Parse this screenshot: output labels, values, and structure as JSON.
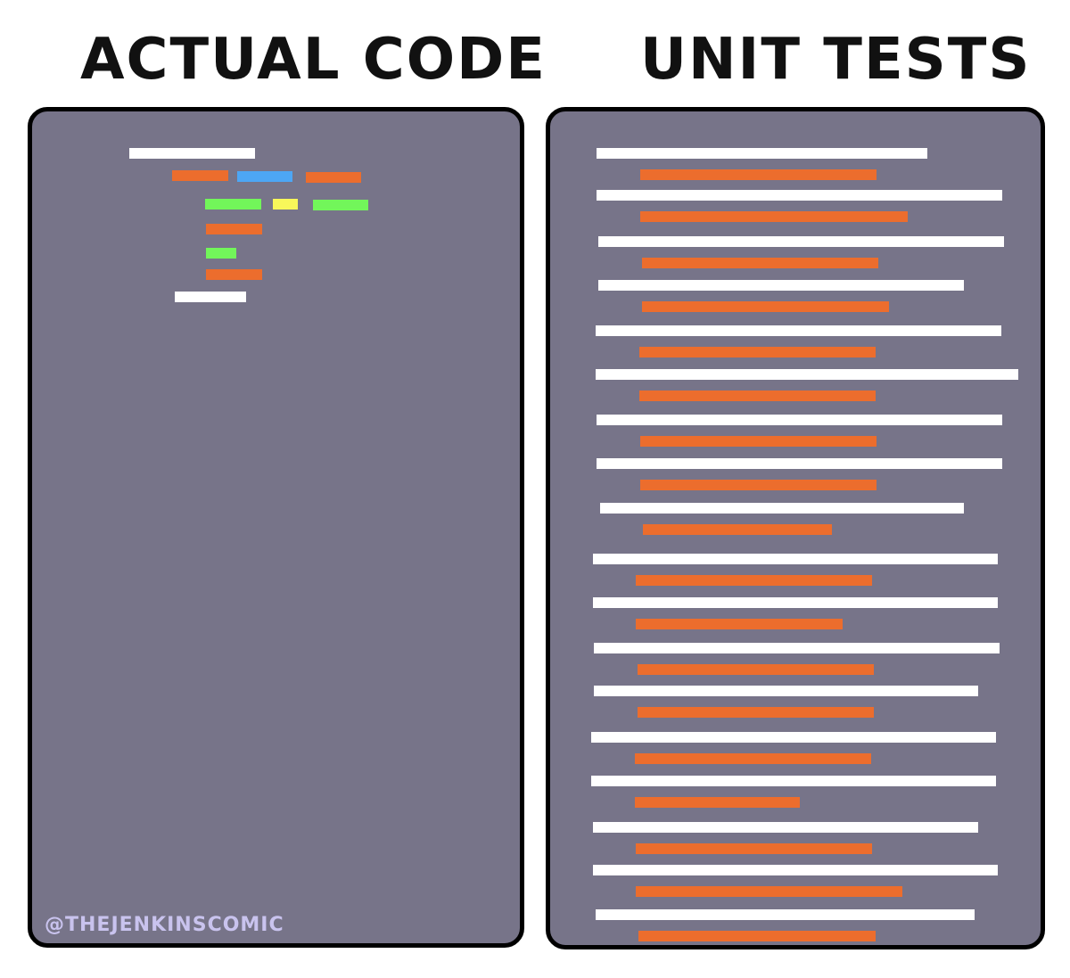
{
  "left": {
    "title": "ACTUAL CODE",
    "watermark": "@THEJENKINSCOMIC"
  },
  "right": {
    "title": "UNIT TESTS"
  },
  "colors": {
    "panel": "#777489",
    "white": "#ffffff",
    "orange": "#ec6d2d",
    "blue": "#4da6f5",
    "green": "#72f65a",
    "yellow": "#f8f75a",
    "watermark": "#c9c3ee"
  }
}
